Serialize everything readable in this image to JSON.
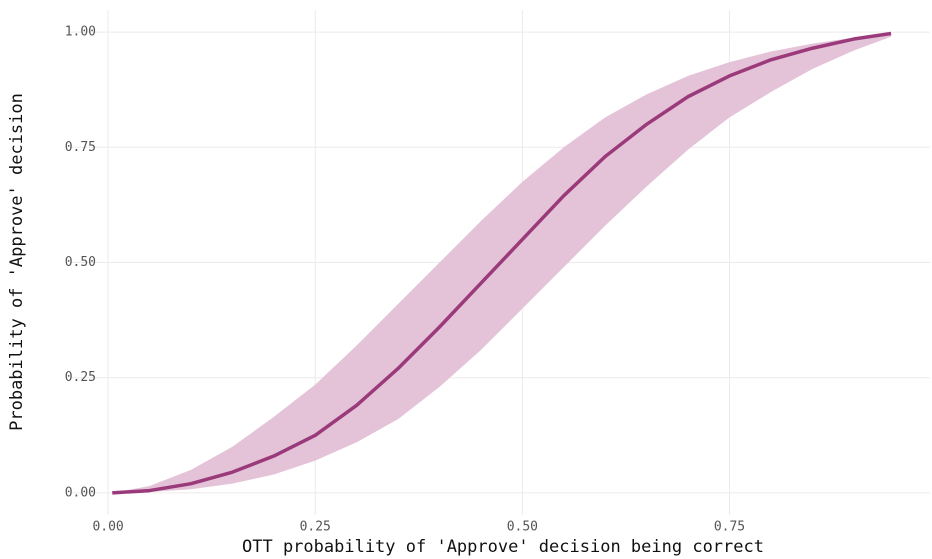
{
  "chart_data": {
    "type": "line",
    "xlabel": "OTT probability of 'Approve' decision being correct",
    "ylabel": "Probability of 'Approve' decision",
    "x": [
      0.005,
      0.05,
      0.1,
      0.15,
      0.2,
      0.25,
      0.3,
      0.35,
      0.4,
      0.45,
      0.5,
      0.55,
      0.6,
      0.65,
      0.7,
      0.75,
      0.8,
      0.85,
      0.9,
      0.945
    ],
    "series": [
      {
        "color": "#9b3a7a",
        "band_color": "#e4c3d8",
        "values": [
          0,
          0.005,
          0.02,
          0.045,
          0.08,
          0.125,
          0.19,
          0.27,
          0.36,
          0.455,
          0.55,
          0.645,
          0.73,
          0.8,
          0.86,
          0.905,
          0.94,
          0.965,
          0.985,
          0.997
        ],
        "upper": [
          0,
          0.015,
          0.05,
          0.1,
          0.165,
          0.235,
          0.32,
          0.41,
          0.5,
          0.59,
          0.675,
          0.75,
          0.815,
          0.865,
          0.905,
          0.935,
          0.958,
          0.975,
          0.988,
          0.998
        ],
        "lower": [
          0,
          0.002,
          0.008,
          0.02,
          0.04,
          0.07,
          0.11,
          0.16,
          0.23,
          0.31,
          0.4,
          0.49,
          0.58,
          0.665,
          0.745,
          0.815,
          0.87,
          0.92,
          0.96,
          0.99
        ]
      }
    ],
    "xlim": [
      -0.046,
      0.992
    ],
    "ylim": [
      -0.048,
      1.048
    ],
    "xticks": [
      {
        "value": 0,
        "label": "0.00"
      },
      {
        "value": 0.25,
        "label": "0.25"
      },
      {
        "value": 0.5,
        "label": "0.50"
      },
      {
        "value": 0.75,
        "label": "0.75"
      }
    ],
    "yticks": [
      {
        "value": 0,
        "label": "0.00"
      },
      {
        "value": 0.25,
        "label": "0.25"
      },
      {
        "value": 0.5,
        "label": "0.50"
      },
      {
        "value": 0.75,
        "label": "0.75"
      },
      {
        "value": 1,
        "label": "1.00"
      }
    ],
    "grid": true
  }
}
